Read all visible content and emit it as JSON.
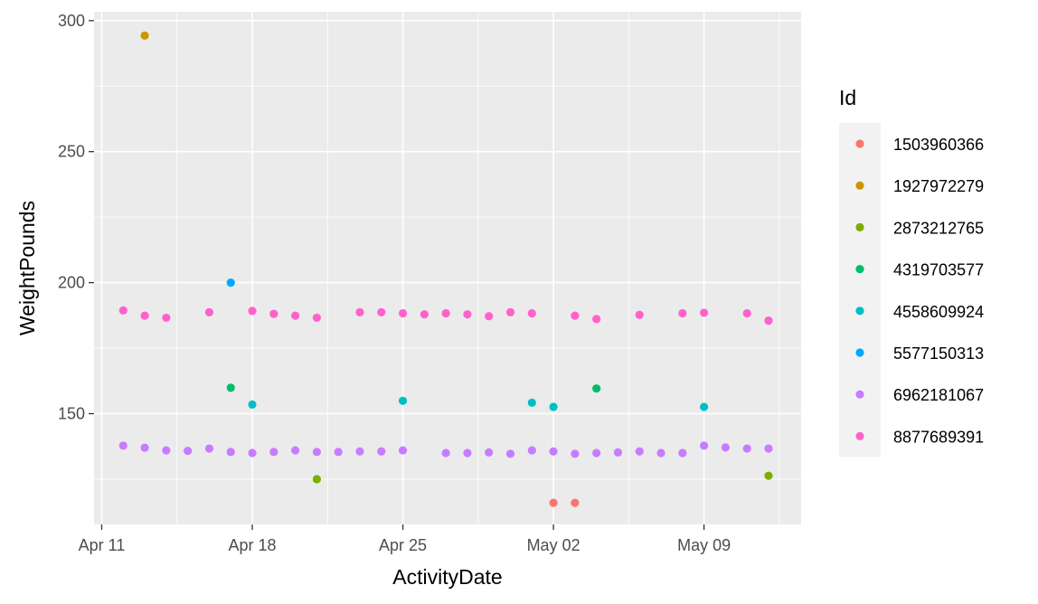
{
  "chart_data": {
    "type": "scatter",
    "title": "",
    "xlabel": "ActivityDate",
    "ylabel": "WeightPounds",
    "x_ticks": [
      "Apr 11",
      "Apr 18",
      "Apr 25",
      "May 02",
      "May 09"
    ],
    "y_ticks": [
      150,
      200,
      250,
      300
    ],
    "legend": {
      "title": "Id",
      "position": "right"
    },
    "series": [
      {
        "name": "1503960366",
        "color": "#F8766D",
        "points": [
          {
            "date": "May 02",
            "y": 115.96
          },
          {
            "date": "May 03",
            "y": 115.96
          }
        ]
      },
      {
        "name": "1927972279",
        "color": "#CD9600",
        "points": [
          {
            "date": "Apr 13",
            "y": 294.3
          }
        ]
      },
      {
        "name": "2873212765",
        "color": "#7CAE00",
        "points": [
          {
            "date": "Apr 21",
            "y": 125.0
          },
          {
            "date": "May 12",
            "y": 126.3
          }
        ]
      },
      {
        "name": "4319703577",
        "color": "#00BE67",
        "points": [
          {
            "date": "Apr 17",
            "y": 159.9
          },
          {
            "date": "May 04",
            "y": 159.6
          }
        ]
      },
      {
        "name": "4558609924",
        "color": "#00BFC4",
        "points": [
          {
            "date": "Apr 18",
            "y": 153.5
          },
          {
            "date": "Apr 25",
            "y": 154.9
          },
          {
            "date": "May 01",
            "y": 154.2
          },
          {
            "date": "May 02",
            "y": 152.6
          },
          {
            "date": "May 09",
            "y": 152.6
          }
        ]
      },
      {
        "name": "5577150313",
        "color": "#00A9FF",
        "points": [
          {
            "date": "Apr 17",
            "y": 199.99
          }
        ]
      },
      {
        "name": "6962181067",
        "color": "#C77CFF",
        "points": [
          {
            "date": "Apr 12",
            "y": 137.8
          },
          {
            "date": "Apr 13",
            "y": 137.0
          },
          {
            "date": "Apr 14",
            "y": 136.0
          },
          {
            "date": "Apr 15",
            "y": 135.8
          },
          {
            "date": "Apr 16",
            "y": 136.7
          },
          {
            "date": "Apr 17",
            "y": 135.4
          },
          {
            "date": "Apr 18",
            "y": 135.0
          },
          {
            "date": "Apr 19",
            "y": 135.4
          },
          {
            "date": "Apr 20",
            "y": 136.0
          },
          {
            "date": "Apr 21",
            "y": 135.4
          },
          {
            "date": "Apr 22",
            "y": 135.4
          },
          {
            "date": "Apr 23",
            "y": 135.6
          },
          {
            "date": "Apr 24",
            "y": 135.6
          },
          {
            "date": "Apr 25",
            "y": 136.0
          },
          {
            "date": "Apr 27",
            "y": 135.0
          },
          {
            "date": "Apr 28",
            "y": 135.0
          },
          {
            "date": "Apr 29",
            "y": 135.2
          },
          {
            "date": "Apr 30",
            "y": 134.7
          },
          {
            "date": "May 01",
            "y": 136.0
          },
          {
            "date": "May 02",
            "y": 135.6
          },
          {
            "date": "May 03",
            "y": 134.7
          },
          {
            "date": "May 04",
            "y": 135.0
          },
          {
            "date": "May 05",
            "y": 135.2
          },
          {
            "date": "May 06",
            "y": 135.6
          },
          {
            "date": "May 07",
            "y": 135.0
          },
          {
            "date": "May 08",
            "y": 135.0
          },
          {
            "date": "May 09",
            "y": 137.8
          },
          {
            "date": "May 10",
            "y": 137.1
          },
          {
            "date": "May 11",
            "y": 136.7
          },
          {
            "date": "May 12",
            "y": 136.7
          }
        ]
      },
      {
        "name": "8877689391",
        "color": "#FF61CC",
        "points": [
          {
            "date": "Apr 12",
            "y": 189.4
          },
          {
            "date": "Apr 13",
            "y": 187.4
          },
          {
            "date": "Apr 14",
            "y": 186.6
          },
          {
            "date": "Apr 16",
            "y": 188.7
          },
          {
            "date": "Apr 18",
            "y": 189.2
          },
          {
            "date": "Apr 19",
            "y": 188.1
          },
          {
            "date": "Apr 20",
            "y": 187.4
          },
          {
            "date": "Apr 21",
            "y": 186.6
          },
          {
            "date": "Apr 23",
            "y": 188.7
          },
          {
            "date": "Apr 24",
            "y": 188.7
          },
          {
            "date": "Apr 25",
            "y": 188.3
          },
          {
            "date": "Apr 26",
            "y": 187.9
          },
          {
            "date": "Apr 27",
            "y": 188.3
          },
          {
            "date": "Apr 28",
            "y": 187.9
          },
          {
            "date": "Apr 29",
            "y": 187.2
          },
          {
            "date": "Apr 30",
            "y": 188.7
          },
          {
            "date": "May 01",
            "y": 188.3
          },
          {
            "date": "May 03",
            "y": 187.4
          },
          {
            "date": "May 04",
            "y": 186.1
          },
          {
            "date": "May 06",
            "y": 187.7
          },
          {
            "date": "May 08",
            "y": 188.3
          },
          {
            "date": "May 09",
            "y": 188.5
          },
          {
            "date": "May 11",
            "y": 188.3
          },
          {
            "date": "May 12",
            "y": 185.5
          }
        ]
      }
    ]
  }
}
